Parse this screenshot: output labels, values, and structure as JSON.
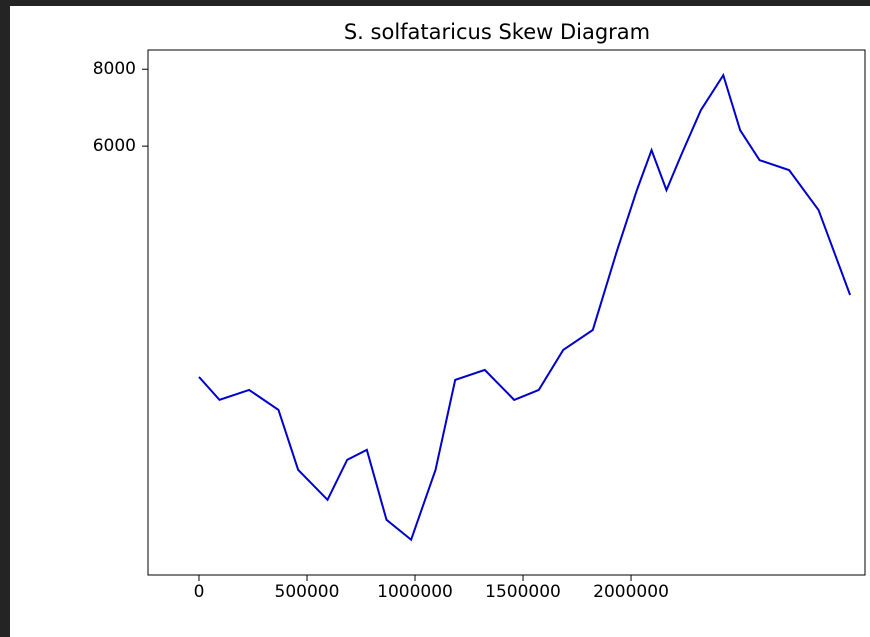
{
  "chart_data": {
    "type": "line",
    "title": "S. solfataricus Skew Diagram",
    "x": [
      0,
      95000,
      232000,
      368000,
      459000,
      595000,
      686000,
      777000,
      868000,
      982000,
      1095000,
      1186000,
      1323000,
      1459000,
      1573000,
      1686000,
      1823000,
      1936000,
      2027000,
      2095000,
      2164000,
      2232000,
      2323000,
      2427000,
      2505000,
      2595000,
      2732000,
      2868000,
      3014000
    ],
    "series": [
      {
        "color": "#0000cc",
        "values": [
          0,
          -597,
          -338,
          -857,
          -2415,
          -3194,
          -2156,
          -1896,
          -3714,
          -4233,
          -2415,
          -78,
          182,
          -597,
          -338,
          701,
          1221,
          3299,
          4857,
          5896,
          4857,
          5766,
          6935,
          7844,
          6416,
          5636,
          5377,
          4338,
          2130
        ]
      }
    ],
    "xlim": [
      -236000,
      3083000
    ],
    "ylim": [
      -5150,
      8500
    ],
    "xticks": [
      0,
      500000,
      1000000,
      1500000,
      2000000
    ],
    "yticks": [
      6000,
      8000
    ]
  }
}
